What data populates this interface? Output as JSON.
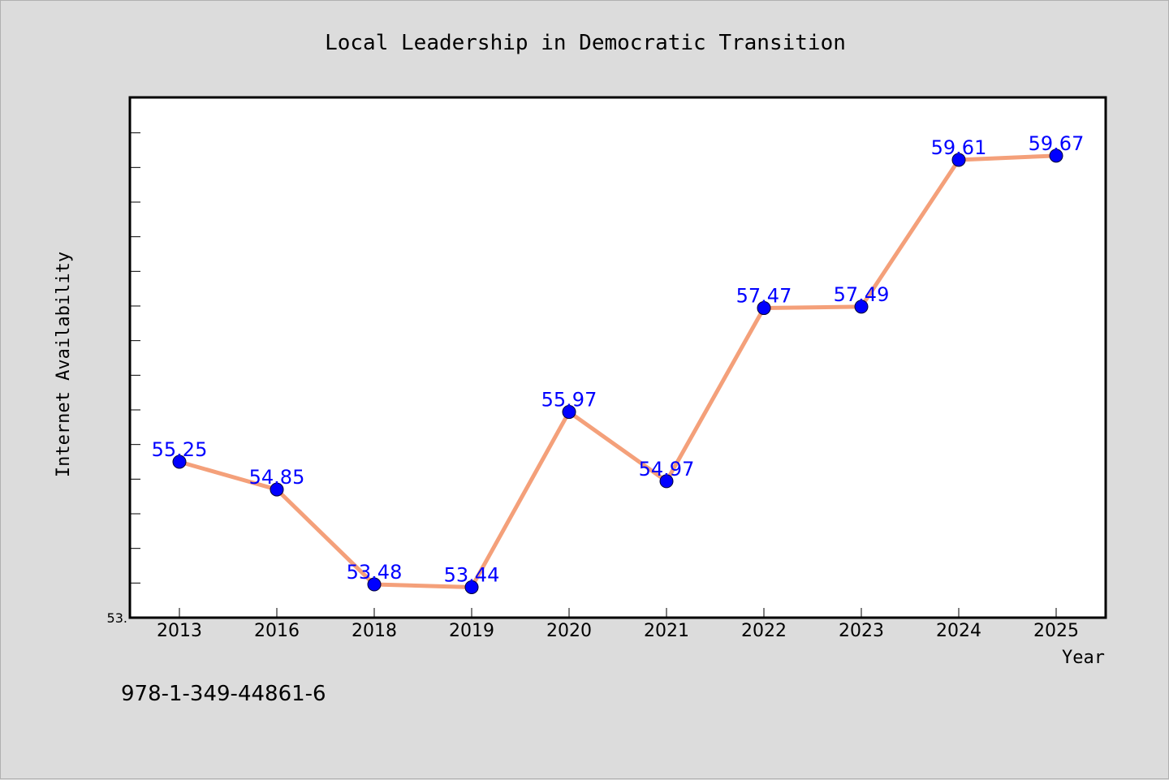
{
  "colors": {
    "background": "#dcdcdc",
    "plot_background": "#ffffff",
    "line": "#f4a07a",
    "marker": "#0000ff",
    "label": "#0000ff"
  },
  "footer_text": "978-1-349-44861-6",
  "y_min_label": "53.",
  "chart_data": {
    "type": "line",
    "title": "Local Leadership in Democratic Transition",
    "xlabel": "Year",
    "ylabel": "Internet Availability",
    "categories": [
      "2013",
      "2016",
      "2018",
      "2019",
      "2020",
      "2021",
      "2022",
      "2023",
      "2024",
      "2025"
    ],
    "series": [
      {
        "values": [
          55.25,
          54.85,
          53.48,
          53.44,
          55.97,
          54.97,
          57.47,
          57.49,
          59.61,
          59.67
        ],
        "labels": [
          "55.25",
          "54.85",
          "53.48",
          "53.44",
          "55.97",
          "54.97",
          "57.47",
          "57.49",
          "59.61",
          "59.67"
        ]
      }
    ],
    "ylim": [
      53.0,
      60.5
    ],
    "grid": false,
    "legend": "none"
  }
}
